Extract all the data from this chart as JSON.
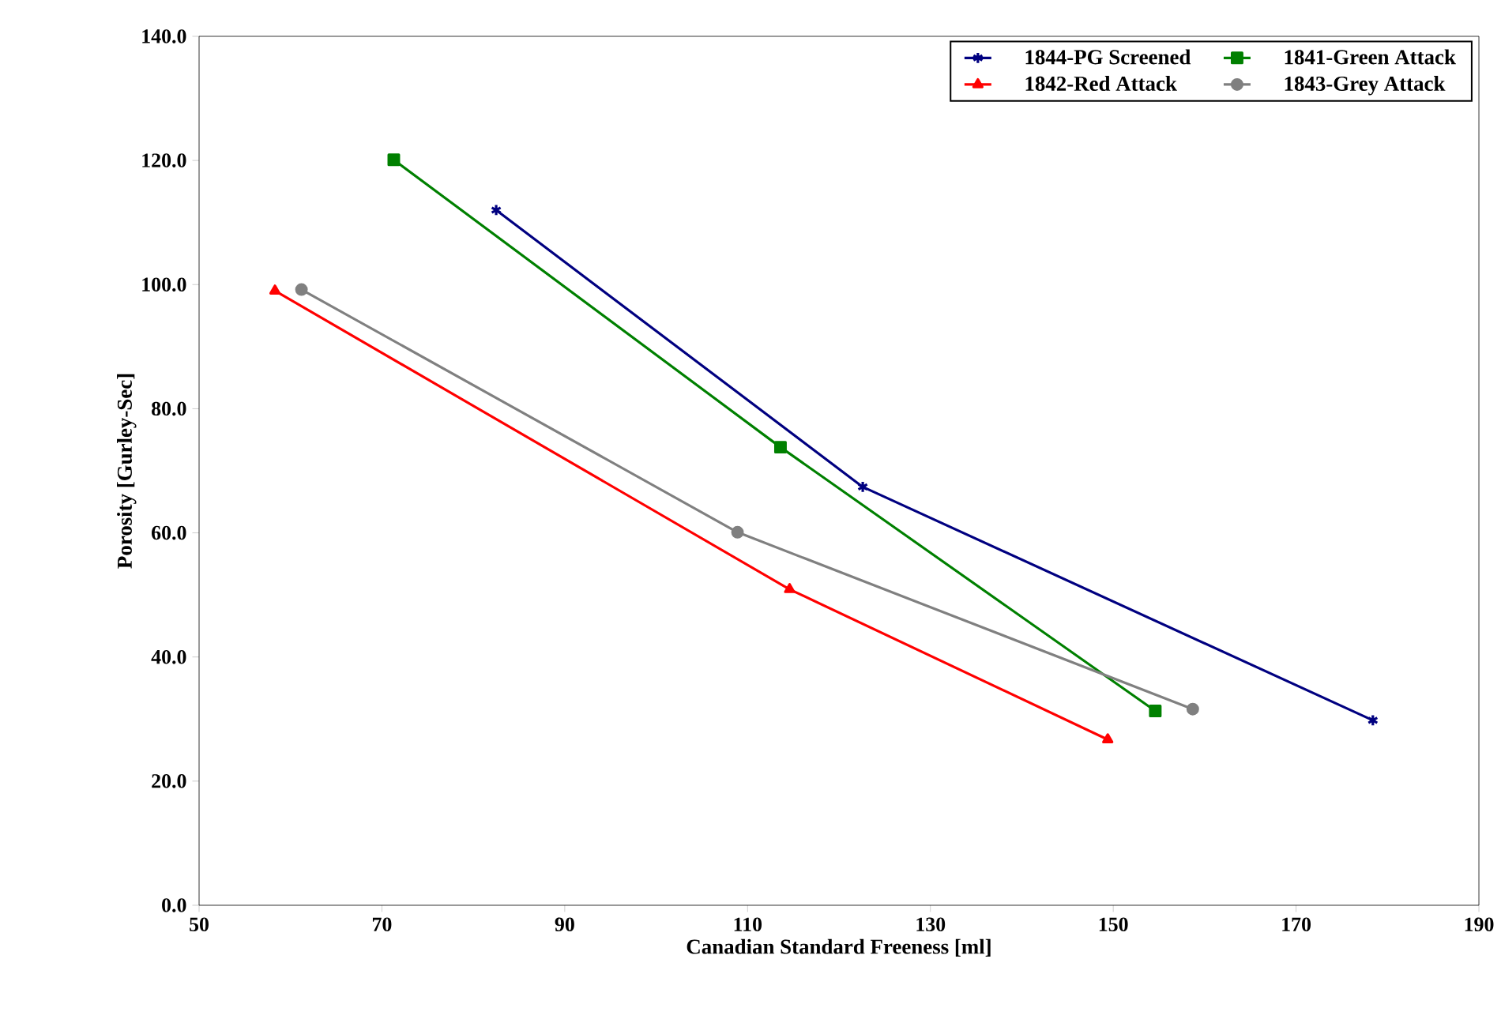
{
  "chart_data": {
    "type": "line",
    "xlabel": "Canadian Standard Freeness  [ml]",
    "ylabel": "Porosity [Gurley-Sec]",
    "xlim": [
      50,
      190
    ],
    "xticks": [
      50,
      70,
      90,
      110,
      130,
      150,
      170,
      190
    ],
    "ylim": [
      0,
      140
    ],
    "yticks": [
      {
        "value": 0,
        "label": "0.0"
      },
      {
        "value": 20,
        "label": "20.0"
      },
      {
        "value": 40,
        "label": "40.0"
      },
      {
        "value": 60,
        "label": "60.0"
      },
      {
        "value": 80,
        "label": "80.0"
      },
      {
        "value": 100,
        "label": "100.0"
      },
      {
        "value": 120,
        "label": "120.0"
      },
      {
        "value": 140,
        "label": "140.0"
      }
    ],
    "grid": false,
    "legend": "top right",
    "line_style": "solid",
    "series": [
      {
        "name": "1844-PG Screened",
        "color": "#000080",
        "marker": "cross",
        "x": [
          82.5,
          122.6,
          178.4
        ],
        "values": [
          112.0,
          67.4,
          29.8
        ]
      },
      {
        "name": "1841-Green Attack",
        "color": "#008000",
        "marker": "square",
        "x": [
          71.3,
          113.6,
          154.6
        ],
        "values": [
          120.1,
          73.8,
          31.3
        ]
      },
      {
        "name": "1842-Red Attack",
        "color": "#ff0000",
        "marker": "triangle",
        "x": [
          58.3,
          114.6,
          149.4
        ],
        "values": [
          99.0,
          50.9,
          26.7
        ]
      },
      {
        "name": "1843-Grey Attack",
        "color": "#808080",
        "marker": "circle",
        "x": [
          61.2,
          108.9,
          158.7
        ],
        "values": [
          99.2,
          60.1,
          31.6
        ]
      }
    ]
  }
}
